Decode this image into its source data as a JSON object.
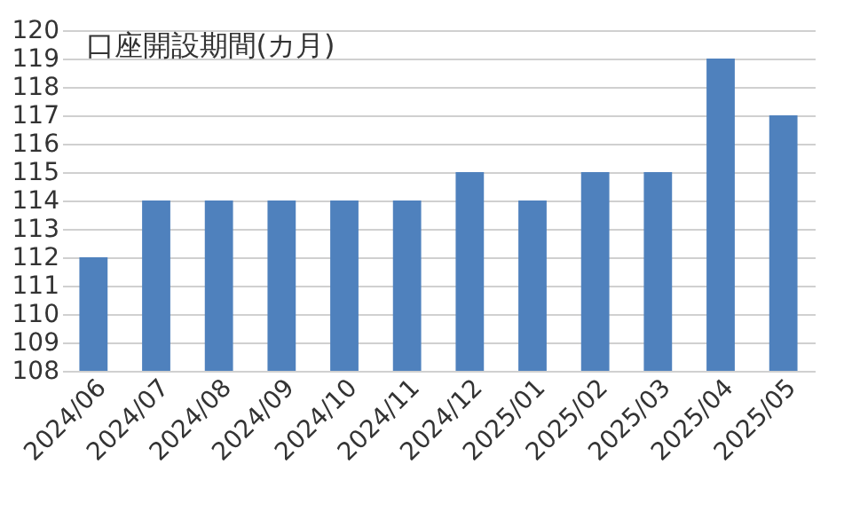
{
  "chart_data": {
    "type": "bar",
    "title": "口座開設期間(カ月)",
    "categories": [
      "2024/06",
      "2024/07",
      "2024/08",
      "2024/09",
      "2024/10",
      "2024/11",
      "2024/12",
      "2025/01",
      "2025/02",
      "2025/03",
      "2025/04",
      "2025/05"
    ],
    "values": [
      112,
      114,
      114,
      114,
      114,
      114,
      115,
      114,
      115,
      115,
      119,
      117
    ],
    "color": "#4f81bd",
    "ylim": [
      108,
      120
    ],
    "yticks": [
      108,
      109,
      110,
      111,
      112,
      113,
      114,
      115,
      116,
      117,
      118,
      119,
      120
    ],
    "grid": "y"
  }
}
